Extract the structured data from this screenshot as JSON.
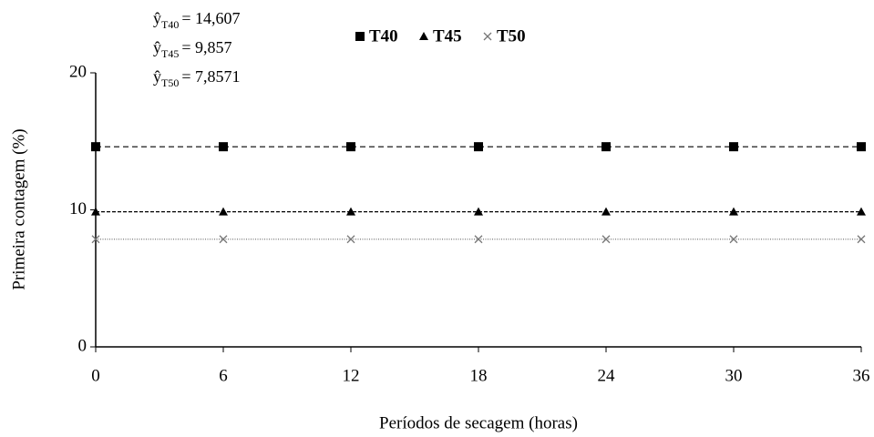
{
  "chart_data": {
    "type": "line",
    "x_label": "Períodos de secagem (horas)",
    "y_label": "Primeira contagem (%)",
    "x": [
      0,
      6,
      12,
      18,
      24,
      30,
      36
    ],
    "xlim": [
      0,
      36
    ],
    "xticks": [
      0,
      6,
      12,
      18,
      24,
      30,
      36
    ],
    "ylim": [
      0,
      20
    ],
    "yticks": [
      0,
      10,
      20
    ],
    "legend": "top",
    "series": [
      {
        "name": "T40",
        "color": "#000000",
        "marker": "square",
        "line_style": "dashed",
        "values": [
          14.607,
          14.607,
          14.607,
          14.607,
          14.607,
          14.607,
          14.607
        ]
      },
      {
        "name": "T45",
        "color": "#000000",
        "marker": "triangle",
        "line_style": "dash-dot",
        "values": [
          9.857,
          9.857,
          9.857,
          9.857,
          9.857,
          9.857,
          9.857
        ]
      },
      {
        "name": "T50",
        "color": "#777777",
        "marker": "x",
        "line_style": "dotted",
        "values": [
          7.8571,
          7.8571,
          7.8571,
          7.8571,
          7.8571,
          7.8571,
          7.8571
        ]
      }
    ],
    "annotations": [
      {
        "symbol": "ŷ",
        "subscript": "T40",
        "text": "= 14,607"
      },
      {
        "symbol": "ŷ",
        "subscript": "T45",
        "text": "= 9,857"
      },
      {
        "symbol": "ŷ",
        "subscript": "T50",
        "text": "= 7,8571"
      }
    ]
  }
}
